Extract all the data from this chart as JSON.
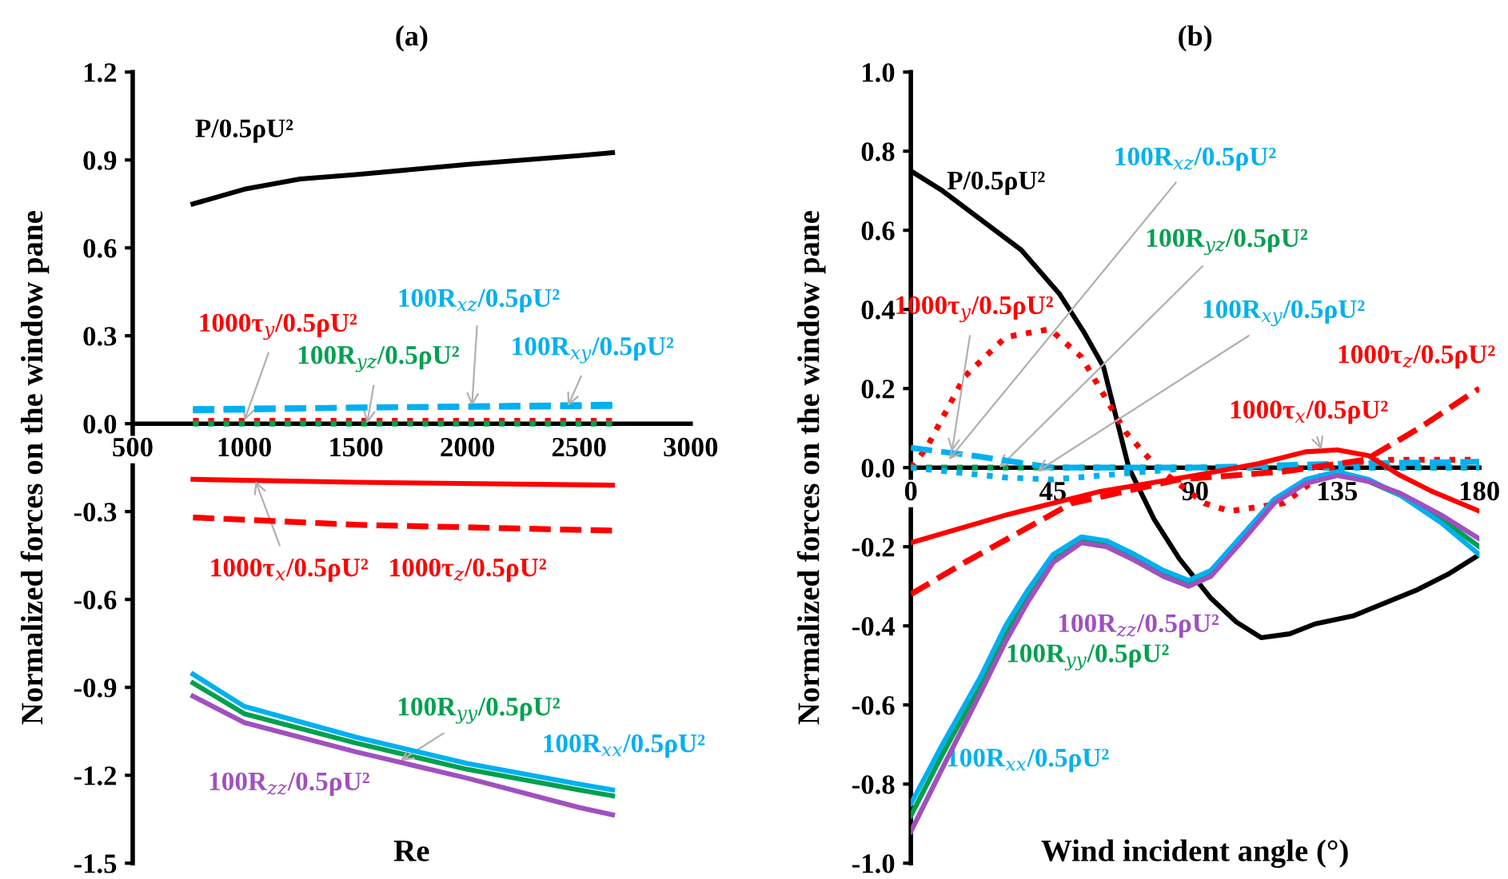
{
  "chart_data": [
    {
      "type": "line",
      "title": "(a)",
      "xlabel": "Re",
      "ylabel": "Normalized forces on the window pane",
      "xlim": [
        500,
        3000
      ],
      "xticks": [
        500,
        1000,
        1500,
        2000,
        2500,
        3000
      ],
      "ylim": [
        -1.5,
        1.2
      ],
      "yticks": [
        -1.5,
        -1.2,
        -0.9,
        -0.6,
        -0.3,
        {
          "value": 0,
          "label": "0.0"
        },
        0.3,
        0.6,
        0.9,
        1.2
      ],
      "grid": false,
      "legend": false,
      "series": [
        {
          "name": "P/0.5ρU²",
          "color": "#000000",
          "line_style": "solid",
          "x": [
            770,
            1000,
            1250,
            1500,
            2000,
            2500,
            2650
          ],
          "values": [
            0.75,
            0.8,
            0.835,
            0.85,
            0.885,
            0.915,
            0.925
          ]
        },
        {
          "name": "1000τ$_{y}$/0.5ρU²",
          "color": "#ff0000",
          "line_style": "dotted",
          "x": [
            770,
            1500,
            2650
          ],
          "values": [
            0.01,
            0.01,
            0.01
          ]
        },
        {
          "name": "100R$_{yz}$/0.5ρU²",
          "color": "#00a050",
          "line_style": "dotted",
          "x": [
            770,
            1500,
            2650
          ],
          "values": [
            0.0,
            0.0,
            0.0
          ]
        },
        {
          "name": "100R$_{xz}$/0.5ρU²",
          "color": "#00b0f0",
          "line_style": "dashed",
          "x": [
            770,
            1500,
            2650
          ],
          "values": [
            0.05,
            0.055,
            0.065
          ]
        },
        {
          "name": "100R$_{xy}$/0.5ρU²",
          "color": "#00b0f0",
          "line_style": "dashed",
          "x": [
            770,
            1500,
            2650
          ],
          "values": [
            0.045,
            0.055,
            0.06
          ]
        },
        {
          "name": "1000τ$_{x}$/0.5ρU²",
          "color": "#ff0000",
          "line_style": "solid",
          "x": [
            770,
            1500,
            2650
          ],
          "values": [
            -0.19,
            -0.2,
            -0.21
          ]
        },
        {
          "name": "1000τ$_{z}$/0.5ρU²",
          "color": "#ff0000",
          "line_style": "dashed",
          "x": [
            770,
            1500,
            2650
          ],
          "values": [
            -0.32,
            -0.345,
            -0.365
          ]
        },
        {
          "name": "100R$_{yy}$/0.5ρU²",
          "color": "#00a050",
          "line_style": "solid",
          "x": [
            770,
            1000,
            1500,
            2000,
            2500,
            2650
          ],
          "values": [
            -0.885,
            -0.99,
            -1.09,
            -1.18,
            -1.25,
            -1.27
          ]
        },
        {
          "name": "100R$_{xx}$/0.5ρU²",
          "color": "#00b0f0",
          "line_style": "solid",
          "x": [
            770,
            1000,
            1500,
            2000,
            2500,
            2650
          ],
          "values": [
            -0.855,
            -0.965,
            -1.07,
            -1.16,
            -1.23,
            -1.25
          ]
        },
        {
          "name": "100R$_{zz}$/0.5ρU²",
          "color": "#a050c0",
          "line_style": "solid",
          "x": [
            770,
            1000,
            1500,
            2000,
            2500,
            2650
          ],
          "values": [
            -0.93,
            -1.02,
            -1.12,
            -1.21,
            -1.31,
            -1.335
          ]
        }
      ]
    },
    {
      "type": "line",
      "title": "(b)",
      "xlabel": "Wind incident angle (°)",
      "ylabel": "Normalized forces on the window pane",
      "xlim": [
        0,
        180
      ],
      "xticks": [
        0,
        45,
        90,
        135,
        180
      ],
      "ylim": [
        -1.0,
        1.0
      ],
      "yticks": [
        {
          "value": -1,
          "label": "-1.0"
        },
        -0.8,
        -0.6,
        -0.4,
        -0.2,
        {
          "value": 0,
          "label": "0.0"
        },
        0.2,
        0.4,
        0.6,
        0.8,
        {
          "value": 1,
          "label": "1.0"
        }
      ],
      "grid": false,
      "legend": false,
      "series": [
        {
          "name": "P/0.5ρU²",
          "color": "#000000",
          "line_style": "solid",
          "x": [
            0,
            10,
            25,
            35,
            47,
            55,
            61,
            69,
            77,
            85,
            95,
            103,
            111,
            120,
            128,
            140,
            160,
            170,
            180
          ],
          "values": [
            0.75,
            0.7,
            0.61,
            0.55,
            0.44,
            0.34,
            0.255,
            0.0,
            -0.13,
            -0.23,
            -0.33,
            -0.39,
            -0.43,
            -0.42,
            -0.395,
            -0.375,
            -0.31,
            -0.27,
            -0.22
          ]
        },
        {
          "name": "1000τ$_{y}$/0.5ρU²",
          "color": "#ff0000",
          "line_style": "dotted",
          "x": [
            0,
            5,
            17,
            30,
            44,
            54,
            68,
            78,
            93,
            101,
            118,
            135,
            152,
            180
          ],
          "values": [
            0.0,
            0.05,
            0.23,
            0.33,
            0.35,
            0.28,
            0.09,
            0.0,
            -0.09,
            -0.11,
            -0.09,
            0.01,
            0.02,
            0.02
          ]
        },
        {
          "name": "100R$_{yz}$/0.5ρU²",
          "color": "#00a050",
          "line_style": "dotted",
          "x": [
            0,
            45,
            90,
            135,
            180
          ],
          "values": [
            0.0,
            0.0,
            0.0,
            0.0,
            0.0
          ]
        },
        {
          "name": "100R$_{xz}$/0.5ρU²",
          "color": "#00b0f0",
          "line_style": "dashed",
          "x": [
            0,
            20,
            45,
            90,
            135,
            180
          ],
          "values": [
            0.05,
            0.03,
            0.0,
            0.0,
            0.01,
            0.015
          ]
        },
        {
          "name": "100R$_{xy}$/0.5ρU²",
          "color": "#00b0f0",
          "line_style": "dotted",
          "x": [
            0,
            30,
            45,
            60,
            90,
            135,
            180
          ],
          "values": [
            0.0,
            -0.025,
            -0.03,
            -0.02,
            0.0,
            0.0,
            0.0
          ]
        },
        {
          "name": "1000τ$_{x}$/0.5ρU²",
          "color": "#ff0000",
          "line_style": "solid",
          "x": [
            0,
            30,
            60,
            90,
            110,
            125,
            135,
            145,
            155,
            165,
            180
          ],
          "values": [
            -0.19,
            -0.12,
            -0.06,
            -0.02,
            0.01,
            0.04,
            0.045,
            0.03,
            -0.02,
            -0.06,
            -0.11
          ]
        },
        {
          "name": "1000τ$_{z}$/0.5ρU²",
          "color": "#ff0000",
          "line_style": "dashed",
          "x": [
            0,
            17,
            51,
            85,
            118,
            144,
            161,
            178,
            180
          ],
          "values": [
            -0.32,
            -0.24,
            -0.09,
            -0.03,
            -0.01,
            0.02,
            0.1,
            0.19,
            0.2
          ]
        },
        {
          "name": "100R$_{yy}$/0.5ρU²",
          "color": "#00a050",
          "line_style": "solid",
          "x": [
            0,
            10,
            22,
            30,
            37,
            45,
            54,
            62,
            71,
            80,
            88,
            95,
            105,
            115,
            125,
            135,
            145,
            155,
            168,
            180
          ],
          "values": [
            -0.88,
            -0.725,
            -0.55,
            -0.42,
            -0.325,
            -0.23,
            -0.18,
            -0.19,
            -0.225,
            -0.265,
            -0.29,
            -0.265,
            -0.175,
            -0.085,
            -0.035,
            -0.015,
            -0.035,
            -0.07,
            -0.13,
            -0.2
          ]
        },
        {
          "name": "100R$_{xx}$/0.5ρU²",
          "color": "#00b0f0",
          "line_style": "solid",
          "x": [
            0,
            10,
            22,
            30,
            37,
            45,
            54,
            62,
            71,
            80,
            88,
            95,
            105,
            115,
            125,
            135,
            145,
            155,
            168,
            180
          ],
          "values": [
            -0.85,
            -0.7,
            -0.53,
            -0.4,
            -0.31,
            -0.22,
            -0.175,
            -0.185,
            -0.22,
            -0.26,
            -0.285,
            -0.26,
            -0.17,
            -0.08,
            -0.03,
            -0.01,
            -0.03,
            -0.07,
            -0.14,
            -0.22
          ]
        },
        {
          "name": "100R$_{zz}$/0.5ρU²",
          "color": "#a050c0",
          "line_style": "solid",
          "x": [
            0,
            10,
            22,
            30,
            37,
            45,
            54,
            62,
            71,
            80,
            88,
            95,
            105,
            115,
            125,
            135,
            145,
            155,
            168,
            180
          ],
          "values": [
            -0.92,
            -0.76,
            -0.57,
            -0.44,
            -0.34,
            -0.24,
            -0.19,
            -0.2,
            -0.235,
            -0.275,
            -0.3,
            -0.275,
            -0.185,
            -0.09,
            -0.04,
            -0.02,
            -0.035,
            -0.065,
            -0.12,
            -0.18
          ]
        }
      ]
    }
  ]
}
